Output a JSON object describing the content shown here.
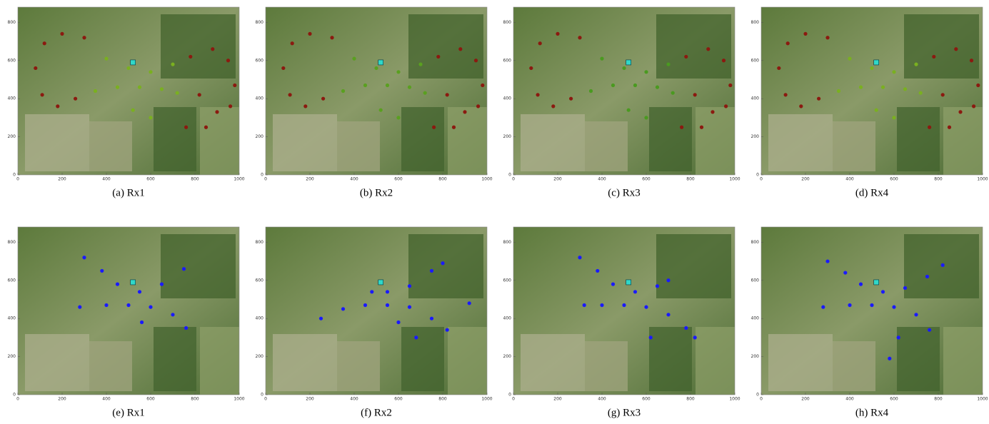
{
  "chart_data": [
    {
      "type": "scatter",
      "title": "(a) Rx1",
      "xlim": [
        0,
        1000
      ],
      "ylim": [
        0,
        880
      ],
      "xticks": [
        0,
        200,
        400,
        600,
        800,
        1000
      ],
      "yticks": [
        0,
        200,
        400,
        600,
        800
      ],
      "series": [
        {
          "color": "#8b1a10",
          "x": [
            200,
            120,
            80,
            110,
            180,
            260,
            300,
            820,
            900,
            960,
            980,
            950,
            880,
            780,
            850,
            760
          ],
          "y": [
            740,
            690,
            560,
            420,
            360,
            400,
            720,
            420,
            330,
            360,
            470,
            600,
            660,
            620,
            250,
            250
          ]
        },
        {
          "color": "#7ab020",
          "x": [
            350,
            450,
            550,
            650,
            720,
            400,
            500,
            600,
            700,
            520,
            600
          ],
          "y": [
            440,
            460,
            460,
            450,
            430,
            610,
            560,
            540,
            580,
            340,
            300
          ]
        },
        {
          "color": "#30d8c8",
          "x": [
            520
          ],
          "y": [
            590
          ]
        }
      ]
    },
    {
      "type": "scatter",
      "title": "(b) Rx2",
      "xlim": [
        0,
        1000
      ],
      "ylim": [
        0,
        880
      ],
      "xticks": [
        0,
        200,
        400,
        600,
        800,
        1000
      ],
      "yticks": [
        0,
        200,
        400,
        600,
        800
      ],
      "series": [
        {
          "color": "#8b1a10",
          "x": [
            200,
            120,
            80,
            110,
            180,
            260,
            300,
            820,
            900,
            960,
            980,
            950,
            880,
            780,
            850,
            760
          ],
          "y": [
            740,
            690,
            560,
            420,
            360,
            400,
            720,
            420,
            330,
            360,
            470,
            600,
            660,
            620,
            250,
            250
          ]
        },
        {
          "color": "#5aa020",
          "x": [
            350,
            450,
            550,
            650,
            720,
            400,
            500,
            600,
            700,
            520,
            600
          ],
          "y": [
            440,
            470,
            470,
            460,
            430,
            610,
            560,
            540,
            580,
            340,
            300
          ]
        },
        {
          "color": "#30d8c8",
          "x": [
            520
          ],
          "y": [
            590
          ]
        }
      ]
    },
    {
      "type": "scatter",
      "title": "(c) Rx3",
      "xlim": [
        0,
        1000
      ],
      "ylim": [
        0,
        880
      ],
      "xticks": [
        0,
        200,
        400,
        600,
        800,
        1000
      ],
      "yticks": [
        0,
        200,
        400,
        600,
        800
      ],
      "series": [
        {
          "color": "#8b1a10",
          "x": [
            200,
            120,
            80,
            110,
            180,
            260,
            300,
            820,
            900,
            960,
            980,
            950,
            880,
            780,
            850,
            760
          ],
          "y": [
            740,
            690,
            560,
            420,
            360,
            400,
            720,
            420,
            330,
            360,
            470,
            600,
            660,
            620,
            250,
            250
          ]
        },
        {
          "color": "#4a9a20",
          "x": [
            350,
            450,
            550,
            650,
            720,
            400,
            500,
            600,
            700,
            520,
            600
          ],
          "y": [
            440,
            470,
            470,
            460,
            430,
            610,
            560,
            540,
            580,
            340,
            300
          ]
        },
        {
          "color": "#30d8c8",
          "x": [
            520
          ],
          "y": [
            590
          ]
        }
      ]
    },
    {
      "type": "scatter",
      "title": "(d) Rx4",
      "xlim": [
        0,
        1000
      ],
      "ylim": [
        0,
        880
      ],
      "xticks": [
        0,
        200,
        400,
        600,
        800,
        1000
      ],
      "yticks": [
        0,
        200,
        400,
        600,
        800
      ],
      "series": [
        {
          "color": "#8b1a10",
          "x": [
            200,
            120,
            80,
            110,
            180,
            260,
            300,
            820,
            900,
            960,
            980,
            950,
            880,
            780,
            850,
            760
          ],
          "y": [
            740,
            690,
            560,
            420,
            360,
            400,
            720,
            420,
            330,
            360,
            470,
            600,
            660,
            620,
            250,
            250
          ]
        },
        {
          "color": "#7ab020",
          "x": [
            350,
            450,
            550,
            650,
            720,
            400,
            500,
            600,
            700,
            520,
            600
          ],
          "y": [
            440,
            460,
            460,
            450,
            430,
            610,
            560,
            540,
            580,
            340,
            300
          ]
        },
        {
          "color": "#30d8c8",
          "x": [
            520
          ],
          "y": [
            590
          ]
        }
      ]
    },
    {
      "type": "scatter",
      "title": "(e) Rx1",
      "xlim": [
        0,
        1000
      ],
      "ylim": [
        0,
        880
      ],
      "xticks": [
        0,
        200,
        400,
        600,
        800,
        1000
      ],
      "yticks": [
        0,
        200,
        400,
        600,
        800
      ],
      "series": [
        {
          "color": "#1a1aff",
          "x": [
            300,
            380,
            450,
            550,
            650,
            750,
            280,
            400,
            500,
            600,
            700,
            760,
            560
          ],
          "y": [
            720,
            650,
            580,
            540,
            580,
            660,
            460,
            470,
            470,
            460,
            420,
            350,
            380
          ]
        },
        {
          "color": "#30d8c8",
          "x": [
            520
          ],
          "y": [
            590
          ]
        }
      ]
    },
    {
      "type": "scatter",
      "title": "(f) Rx2",
      "xlim": [
        0,
        1000
      ],
      "ylim": [
        0,
        880
      ],
      "xticks": [
        0,
        200,
        400,
        600,
        800,
        1000
      ],
      "yticks": [
        0,
        200,
        400,
        600,
        800
      ],
      "series": [
        {
          "color": "#1a1aff",
          "x": [
            250,
            350,
            450,
            550,
            650,
            750,
            820,
            920,
            480,
            550,
            650,
            750,
            800,
            600,
            680
          ],
          "y": [
            400,
            450,
            470,
            470,
            460,
            400,
            340,
            480,
            540,
            540,
            570,
            650,
            690,
            380,
            300
          ]
        },
        {
          "color": "#30d8c8",
          "x": [
            520
          ],
          "y": [
            590
          ]
        }
      ]
    },
    {
      "type": "scatter",
      "title": "(g) Rx3",
      "xlim": [
        0,
        1000
      ],
      "ylim": [
        0,
        880
      ],
      "xticks": [
        0,
        200,
        400,
        600,
        800,
        1000
      ],
      "yticks": [
        0,
        200,
        400,
        600,
        800
      ],
      "series": [
        {
          "color": "#1a1aff",
          "x": [
            300,
            380,
            450,
            550,
            650,
            700,
            320,
            400,
            500,
            600,
            700,
            780,
            820,
            620
          ],
          "y": [
            720,
            650,
            580,
            540,
            570,
            600,
            470,
            470,
            470,
            460,
            420,
            350,
            300,
            300
          ]
        },
        {
          "color": "#30d8c8",
          "x": [
            520
          ],
          "y": [
            590
          ]
        }
      ]
    },
    {
      "type": "scatter",
      "title": "(h) Rx4",
      "xlim": [
        0,
        1000
      ],
      "ylim": [
        0,
        880
      ],
      "xticks": [
        0,
        200,
        400,
        600,
        800,
        1000
      ],
      "yticks": [
        0,
        200,
        400,
        600,
        800
      ],
      "series": [
        {
          "color": "#1a1aff",
          "x": [
            300,
            380,
            450,
            550,
            650,
            750,
            820,
            280,
            400,
            500,
            600,
            700,
            760,
            620,
            580
          ],
          "y": [
            700,
            640,
            580,
            540,
            560,
            620,
            680,
            460,
            470,
            470,
            460,
            420,
            340,
            300,
            190
          ]
        },
        {
          "color": "#30d8c8",
          "x": [
            520
          ],
          "y": [
            590
          ]
        }
      ]
    }
  ]
}
